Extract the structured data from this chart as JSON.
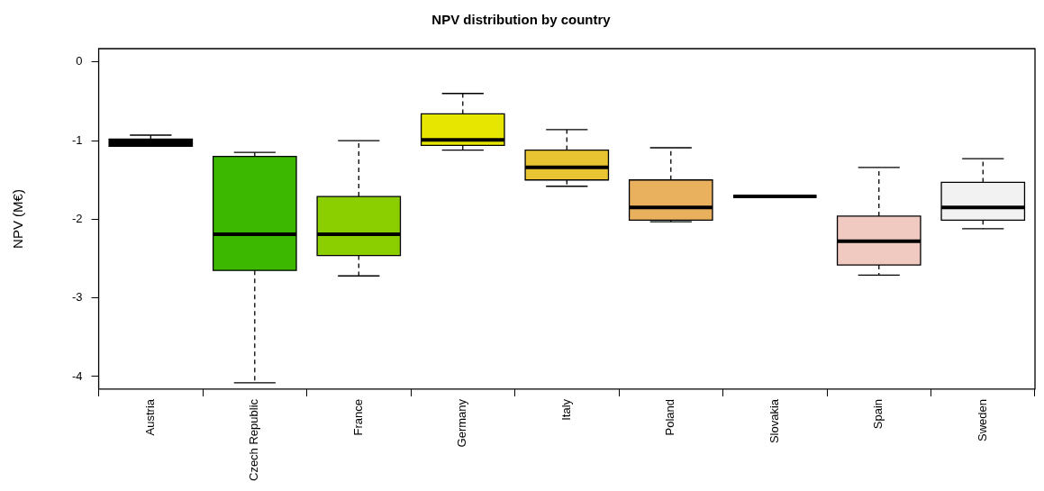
{
  "chart_data": {
    "type": "box",
    "title": "NPV distribution by country",
    "ylabel": "NPV (M€)",
    "categories": [
      "Austria",
      "Czech Republic",
      "France",
      "Germany",
      "Italy",
      "Poland",
      "Slovakia",
      "Spain",
      "Sweden"
    ],
    "colors": [
      "#000000",
      "#3cb800",
      "#8ccf00",
      "#e6e600",
      "#e8c432",
      "#e9b05e",
      "#000000",
      "#f0c9c0",
      "#f2f2f2"
    ],
    "boxes": [
      {
        "low": -1.07,
        "q1": -1.07,
        "median": -1.03,
        "q3": -0.98,
        "high": -0.93
      },
      {
        "low": -4.08,
        "q1": -2.65,
        "median": -2.19,
        "q3": -1.2,
        "high": -1.15
      },
      {
        "low": -2.72,
        "q1": -2.46,
        "median": -2.19,
        "q3": -1.71,
        "high": -1.0
      },
      {
        "low": -1.12,
        "q1": -1.06,
        "median": -0.99,
        "q3": -0.66,
        "high": -0.4
      },
      {
        "low": -1.58,
        "q1": -1.5,
        "median": -1.34,
        "q3": -1.12,
        "high": -0.86
      },
      {
        "low": -2.03,
        "q1": -2.01,
        "median": -1.85,
        "q3": -1.5,
        "high": -1.09
      },
      {
        "low": -1.71,
        "q1": -1.71,
        "median": -1.71,
        "q3": -1.71,
        "high": -1.71
      },
      {
        "low": -2.71,
        "q1": -2.58,
        "median": -2.28,
        "q3": -1.96,
        "high": -1.34
      },
      {
        "low": -2.12,
        "q1": -2.01,
        "median": -1.85,
        "q3": -1.53,
        "high": -1.23
      }
    ],
    "ylim": [
      -4.16,
      0.17
    ],
    "yticks": [
      0,
      -1,
      -2,
      -3,
      -4
    ]
  }
}
